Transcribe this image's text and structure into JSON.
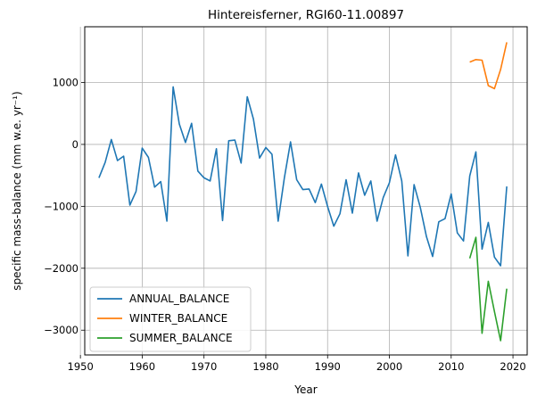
{
  "chart_data": {
    "type": "line",
    "title": "Hintereisferner, RGI60-11.00897",
    "xlabel": "Year",
    "ylabel": "specific mass-balance (mm w.e. yr⁻¹)",
    "xlim": [
      1950.7,
      2022.3
    ],
    "ylim": [
      -3400,
      1900
    ],
    "xticks": [
      1950,
      1960,
      1970,
      1980,
      1990,
      2000,
      2010,
      2020
    ],
    "yticks": [
      -3000,
      -2000,
      -1000,
      0,
      1000
    ],
    "ytick_labels": [
      "−3000",
      "−2000",
      "−1000",
      "0",
      "1000"
    ],
    "grid": true,
    "legend_position": "lower-left",
    "series": [
      {
        "name": "ANNUAL_BALANCE",
        "color": "#1f77b4",
        "x": [
          1953,
          1954,
          1955,
          1956,
          1957,
          1958,
          1959,
          1960,
          1961,
          1962,
          1963,
          1964,
          1965,
          1966,
          1967,
          1968,
          1969,
          1970,
          1971,
          1972,
          1973,
          1974,
          1975,
          1976,
          1977,
          1978,
          1979,
          1980,
          1981,
          1982,
          1983,
          1984,
          1985,
          1986,
          1987,
          1988,
          1989,
          1990,
          1991,
          1992,
          1993,
          1994,
          1995,
          1996,
          1997,
          1998,
          1999,
          2000,
          2001,
          2002,
          2003,
          2004,
          2005,
          2006,
          2007,
          2008,
          2009,
          2010,
          2011,
          2012,
          2013,
          2014,
          2015,
          2016,
          2017,
          2018,
          2019
        ],
        "y": [
          -540,
          -290,
          80,
          -260,
          -190,
          -980,
          -760,
          -60,
          -210,
          -690,
          -600,
          -1240,
          930,
          330,
          30,
          340,
          -430,
          -540,
          -590,
          -70,
          -1230,
          60,
          70,
          -300,
          770,
          410,
          -220,
          -50,
          -160,
          -1240,
          -540,
          40,
          -570,
          -730,
          -720,
          -940,
          -640,
          -1000,
          -1320,
          -1120,
          -570,
          -1110,
          -460,
          -820,
          -590,
          -1240,
          -860,
          -620,
          -170,
          -590,
          -1800,
          -650,
          -1020,
          -1490,
          -1810,
          -1250,
          -1200,
          -800,
          -1430,
          -1560,
          -510,
          -120,
          -1690,
          -1260,
          -1820,
          -1960,
          -680
        ]
      },
      {
        "name": "WINTER_BALANCE",
        "color": "#ff7f0e",
        "x": [
          2013,
          2014,
          2015,
          2016,
          2017,
          2018,
          2019
        ],
        "y": [
          1330,
          1370,
          1360,
          950,
          900,
          1210,
          1650
        ]
      },
      {
        "name": "SUMMER_BALANCE",
        "color": "#2ca02c",
        "x": [
          2013,
          2014,
          2015,
          2016,
          2017,
          2018,
          2019
        ],
        "y": [
          -1840,
          -1500,
          -3050,
          -2210,
          -2700,
          -3170,
          -2330
        ]
      }
    ]
  }
}
